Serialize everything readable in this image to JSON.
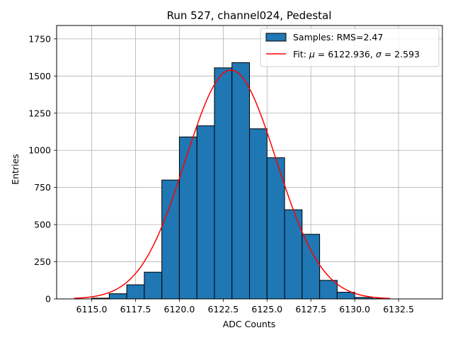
{
  "chart_data": {
    "type": "bar",
    "title": "Run 527, channel024, Pedestal",
    "xlabel": "ADC Counts",
    "ylabel": "Entries",
    "xlim": [
      6113.0,
      6135.0
    ],
    "ylim": [
      0,
      1840
    ],
    "xticks": [
      6115.0,
      6117.5,
      6120.0,
      6122.5,
      6125.0,
      6127.5,
      6130.0,
      6132.5
    ],
    "xtick_labels": [
      "6115.0",
      "6117.5",
      "6120.0",
      "6122.5",
      "6125.0",
      "6127.5",
      "6130.0",
      "6132.5"
    ],
    "yticks": [
      0,
      250,
      500,
      750,
      1000,
      1250,
      1500,
      1750
    ],
    "ytick_labels": [
      "0",
      "250",
      "500",
      "750",
      "1000",
      "1250",
      "1500",
      "1750"
    ],
    "grid": true,
    "histogram": {
      "name": "Samples: RMS=2.47",
      "color": "#1f77b4",
      "edge_color": "#000000",
      "bin_edges": [
        6114,
        6115,
        6116,
        6117,
        6118,
        6119,
        6120,
        6121,
        6122,
        6123,
        6124,
        6125,
        6126,
        6127,
        6128,
        6129,
        6130,
        6131,
        6132,
        6133,
        6134
      ],
      "counts": [
        0,
        5,
        35,
        95,
        180,
        800,
        1090,
        1165,
        1555,
        1590,
        1145,
        950,
        600,
        435,
        125,
        45,
        10,
        2,
        0,
        0
      ]
    },
    "fit": {
      "name": "Fit:",
      "name_mu": "μ",
      "mu_text": " = 6122.936, ",
      "name_sigma": "σ",
      "sigma_text": " = 2.593",
      "mu": 6122.936,
      "sigma": 2.593,
      "amplitude": 1540,
      "x_range": [
        6114.0,
        6132.0
      ],
      "color": "#ff0000"
    },
    "legend_position": "upper right"
  }
}
